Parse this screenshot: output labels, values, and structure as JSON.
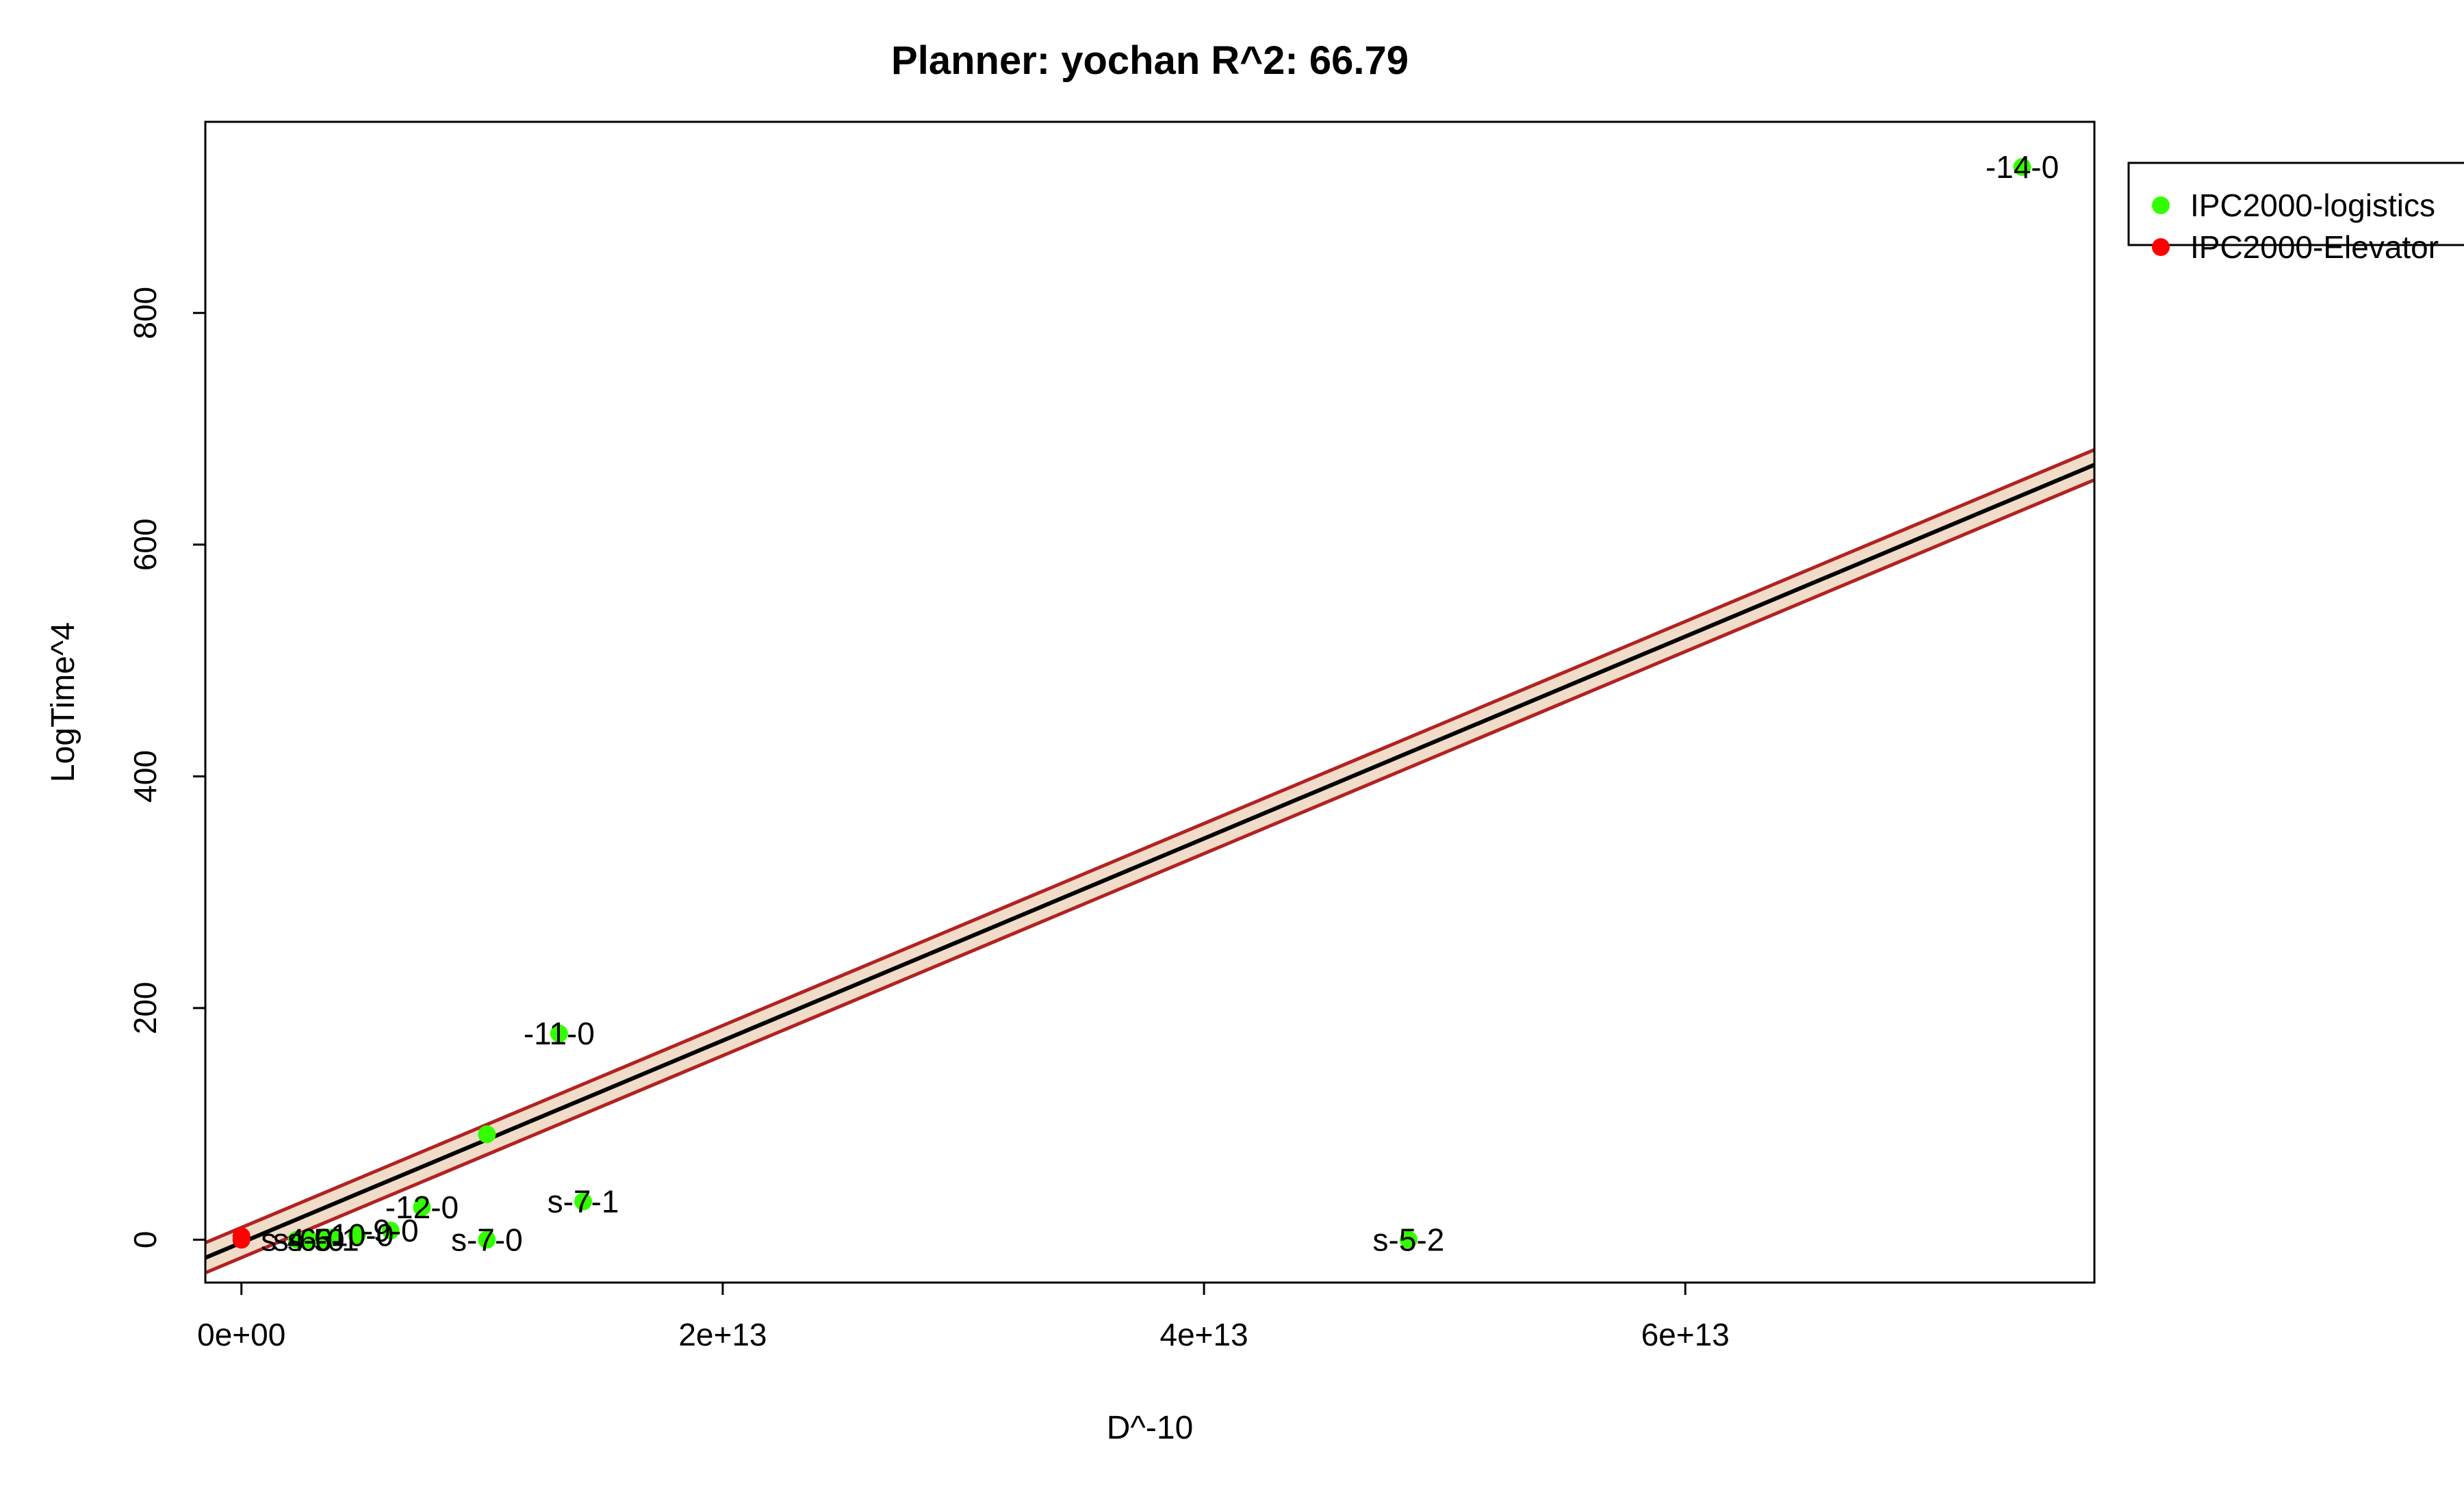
{
  "chart_data": {
    "type": "scatter",
    "title": "Planner: yochan R^2: 66.79",
    "xlabel": "D^-10",
    "ylabel": "LogTime^4",
    "xlim": [
      -1500000000000.0,
      77000000000000.0
    ],
    "ylim": [
      -37,
      965
    ],
    "x_ticks": [
      {
        "value": 0,
        "label": "0e+00"
      },
      {
        "value": 20000000000000.0,
        "label": "2e+13"
      },
      {
        "value": 40000000000000.0,
        "label": "4e+13"
      },
      {
        "value": 60000000000000.0,
        "label": "6e+13"
      }
    ],
    "y_ticks": [
      {
        "value": 0,
        "label": "0"
      },
      {
        "value": 200,
        "label": "200"
      },
      {
        "value": 400,
        "label": "400"
      },
      {
        "value": 600,
        "label": "600"
      },
      {
        "value": 800,
        "label": "800"
      }
    ],
    "grid": false,
    "legend_position": "top-right, outside plot",
    "legend": [
      {
        "name": "IPC2000-logistics",
        "color": "#33ff00"
      },
      {
        "name": "IPC2000-Elevator",
        "color": "#ff0000"
      }
    ],
    "regression": {
      "intercept": -2.5,
      "slope": 8.72e-12,
      "band_half_width": 13,
      "line_color": "#000000",
      "band_line_color": "#b22222",
      "band_fill": "#f0dcc8"
    },
    "series": [
      {
        "name": "IPC2000-logistics",
        "color": "#33ff00",
        "points": [
          {
            "x": 74000000000000.0,
            "y": 926,
            "label": "-14-0"
          },
          {
            "x": 13200000000000.0,
            "y": 178,
            "label": "-11-0"
          },
          {
            "x": 10200000000000.0,
            "y": 91,
            "label": ""
          },
          {
            "x": 14200000000000.0,
            "y": 33,
            "label": "s-7-1"
          },
          {
            "x": 7500000000000.0,
            "y": 28,
            "label": "-12-0"
          },
          {
            "x": 6200000000000.0,
            "y": 8,
            "label": "-9-0"
          },
          {
            "x": 4800000000000.0,
            "y": 4,
            "label": "-10-0"
          },
          {
            "x": 3800000000000.0,
            "y": 2,
            "label": ""
          },
          {
            "x": 10200000000000.0,
            "y": 0,
            "label": "s-7-0"
          },
          {
            "x": 48500000000000.0,
            "y": 0,
            "label": "s-5-2"
          },
          {
            "x": 3400000000000.0,
            "y": 0,
            "label": "s-5-1"
          },
          {
            "x": 2800000000000.0,
            "y": 0,
            "label": "s-6-0"
          },
          {
            "x": 2300000000000.0,
            "y": 0,
            "label": "s-4-0"
          }
        ]
      },
      {
        "name": "IPC2000-Elevator",
        "color": "#ff0000",
        "points": [
          {
            "x": 0,
            "y": 3,
            "label": ""
          },
          {
            "x": 0,
            "y": 0,
            "label": ""
          }
        ]
      }
    ]
  }
}
